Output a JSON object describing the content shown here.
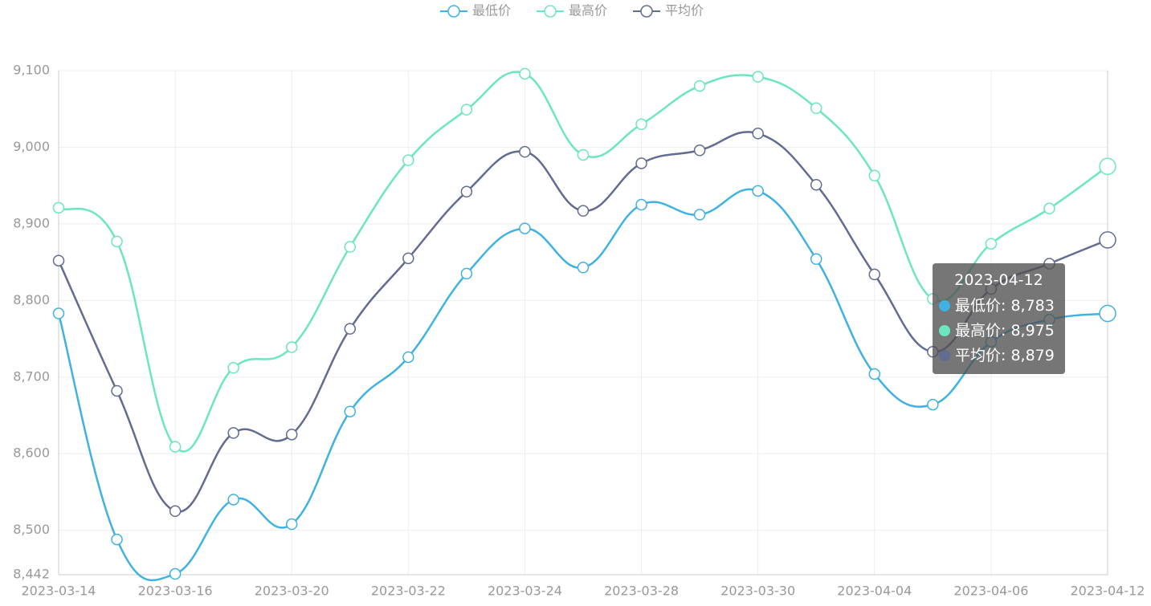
{
  "chart_data": {
    "type": "line",
    "categories": [
      "2023-03-14",
      null,
      "2023-03-16",
      null,
      "2023-03-20",
      null,
      "2023-03-22",
      null,
      "2023-03-24",
      null,
      "2023-03-28",
      null,
      "2023-03-30",
      null,
      "2023-04-04",
      null,
      "2023-04-06",
      null,
      "2023-04-12"
    ],
    "series": [
      {
        "name": "最低价",
        "color": "#3fb1e3",
        "values": [
          8783,
          8488,
          8443,
          8540,
          8508,
          8655,
          8726,
          8835,
          8894,
          8843,
          8925,
          8912,
          8943,
          8854,
          8704,
          8664,
          8746,
          8775,
          8783
        ]
      },
      {
        "name": "最高价",
        "color": "#6be6c1",
        "values": [
          8921,
          8877,
          8609,
          8712,
          8739,
          8870,
          8983,
          9049,
          9096,
          8990,
          9030,
          9080,
          9092,
          9051,
          8963,
          8802,
          8874,
          8920,
          8975
        ]
      },
      {
        "name": "平均价",
        "color": "#626c91",
        "values": [
          8852,
          8682,
          8525,
          8627,
          8625,
          8763,
          8855,
          8942,
          8994,
          8917,
          8979,
          8996,
          9018,
          8951,
          8834,
          8733,
          8815,
          8848,
          8879
        ]
      }
    ],
    "ylim": [
      8442,
      9100
    ],
    "yticks": [
      {
        "value": 8442,
        "label": "8,442"
      },
      {
        "value": 8500,
        "label": "8,500"
      },
      {
        "value": 8600,
        "label": "8,600"
      },
      {
        "value": 8700,
        "label": "8,700"
      },
      {
        "value": 8800,
        "label": "8,800"
      },
      {
        "value": 8900,
        "label": "8,900"
      },
      {
        "value": 9000,
        "label": "9,000"
      },
      {
        "value": 9100,
        "label": "9,100"
      }
    ],
    "grid": true,
    "legend": "top",
    "tooltip": {
      "rows": [
        "最低价: 8,783",
        "最高价: 8,975",
        "平均价: 8,879"
      ]
    }
  }
}
